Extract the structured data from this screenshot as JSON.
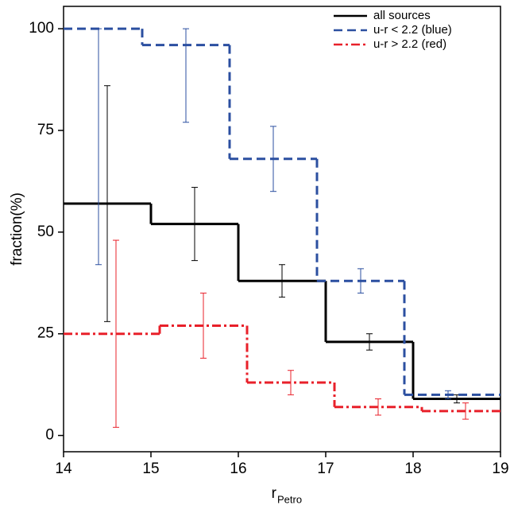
{
  "chart_data": {
    "type": "step",
    "x_label": "r",
    "x_label_sub": "Petro",
    "y_label": "fraction(%)",
    "xlim": [
      14,
      19
    ],
    "ylim": [
      -4,
      105.5
    ],
    "xticks": [
      14,
      15,
      16,
      17,
      18,
      19
    ],
    "yticks": [
      0,
      25,
      50,
      75,
      100
    ],
    "legend": "upper right",
    "series": [
      {
        "name": "all sources",
        "color": "#000000",
        "dash": "solid",
        "x_edges": [
          14,
          15,
          16,
          17,
          18,
          19
        ],
        "x": [
          14.5,
          15.5,
          16.5,
          17.5,
          18.5
        ],
        "values": [
          57,
          52,
          38,
          23,
          9
        ],
        "err_minus": [
          29,
          9,
          4,
          2,
          1
        ],
        "err_plus": [
          29,
          9,
          4,
          2,
          1
        ]
      },
      {
        "name": "u-r < 2.2 (blue)",
        "color": "#2b4fa0",
        "dash": "dashed",
        "x_edges": [
          14,
          14.9,
          15.9,
          16.9,
          17.9,
          19
        ],
        "x": [
          14.4,
          15.4,
          16.4,
          17.4,
          18.4
        ],
        "values": [
          100,
          96,
          68,
          38,
          10
        ],
        "err_minus": [
          58,
          19,
          8,
          3,
          1
        ],
        "err_plus": [
          0,
          4,
          8,
          3,
          1
        ]
      },
      {
        "name": "u-r > 2.2 (red)",
        "color": "#e8202a",
        "dash": "dashdot",
        "x_edges": [
          14,
          15.1,
          16.1,
          17.1,
          18.1,
          19
        ],
        "x": [
          14.6,
          15.6,
          16.6,
          17.6,
          18.6
        ],
        "values": [
          25,
          27,
          13,
          7,
          6
        ],
        "err_minus": [
          23,
          8,
          3,
          2,
          2
        ],
        "err_plus": [
          23,
          8,
          3,
          2,
          2
        ]
      }
    ]
  }
}
